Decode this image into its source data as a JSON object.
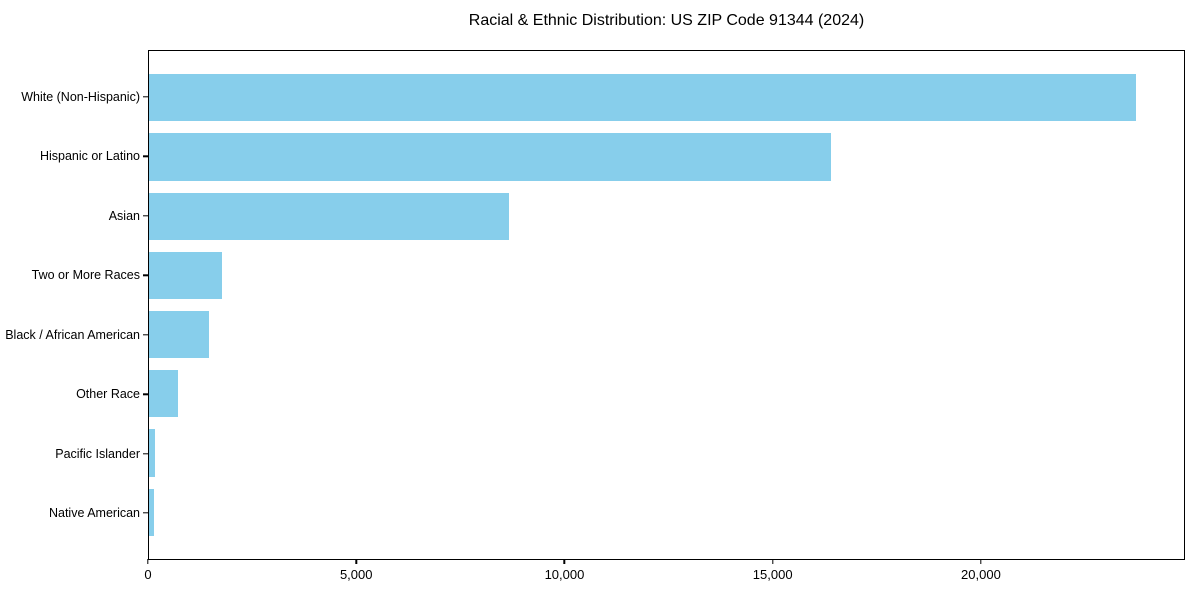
{
  "title": "Racial & Ethnic Distribution: US ZIP Code 91344 (2024)",
  "chart_data": {
    "type": "bar",
    "orientation": "horizontal",
    "title": "Racial & Ethnic Distribution: US ZIP Code 91344 (2024)",
    "categories": [
      "White (Non-Hispanic)",
      "Hispanic or Latino",
      "Asian",
      "Two or More Races",
      "Black / African American",
      "Other Race",
      "Pacific Islander",
      "Native American"
    ],
    "values": [
      23750,
      16400,
      8660,
      1750,
      1450,
      690,
      145,
      115
    ],
    "bar_color": "#87CEEB",
    "xlabel": "",
    "ylabel": "",
    "xlim": [
      0,
      24900
    ],
    "xticks": [
      0,
      5000,
      10000,
      15000,
      20000
    ],
    "xtick_labels": [
      "0",
      "5,000",
      "10,000",
      "15,000",
      "20,000"
    ],
    "grid": false,
    "legend_position": "none",
    "bar_fraction": 0.8,
    "y_pad_units": 0.79
  }
}
